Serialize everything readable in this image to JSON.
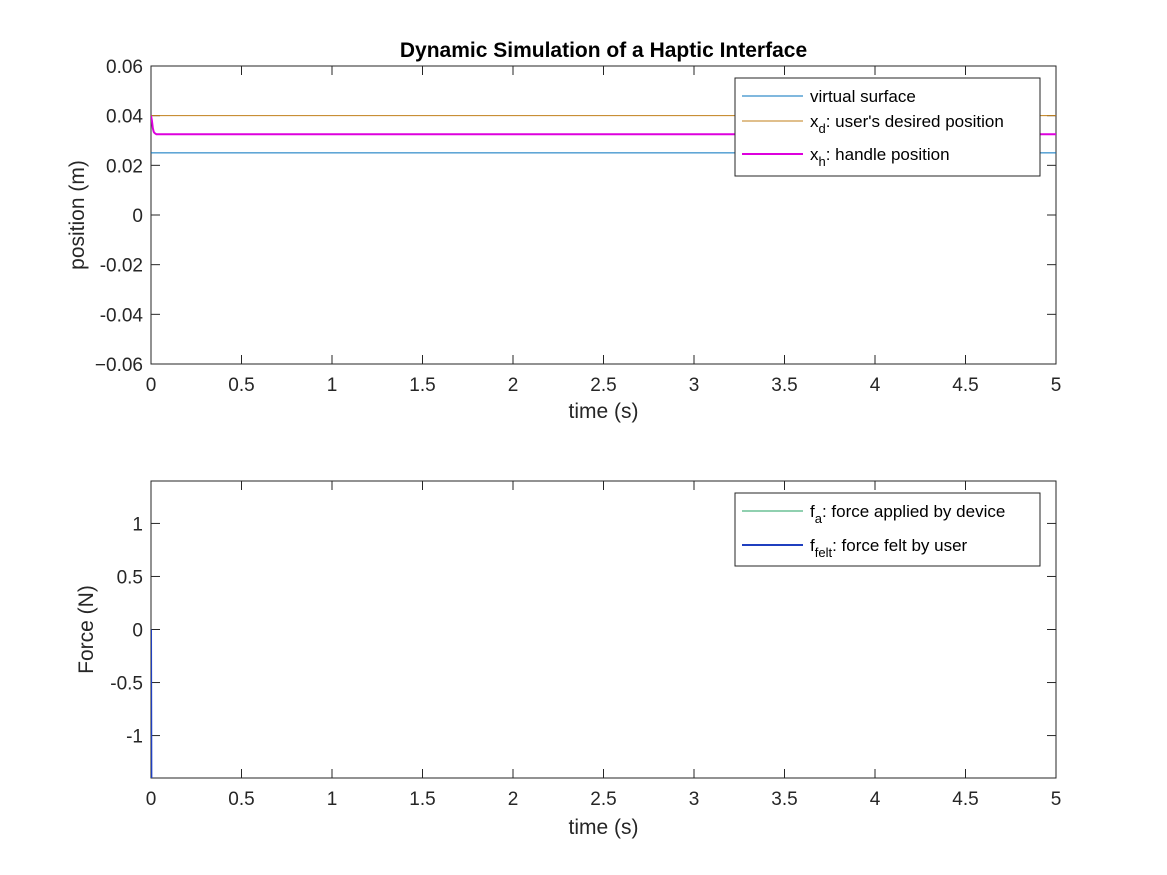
{
  "chart_data": [
    {
      "type": "line",
      "title": "Dynamic Simulation of a Haptic Interface",
      "xlabel": "time (s)",
      "ylabel": "position (m)",
      "xlim": [
        0,
        5
      ],
      "ylim": [
        -0.06,
        0.06
      ],
      "xticks": [
        0,
        0.5,
        1,
        1.5,
        2,
        2.5,
        3,
        3.5,
        4,
        4.5,
        5
      ],
      "xtick_labels": [
        "0",
        "0.5",
        "1",
        "1.5",
        "2",
        "2.5",
        "3",
        "3.5",
        "4",
        "4.5",
        "5"
      ],
      "yticks": [
        -0.06,
        -0.04,
        -0.02,
        0,
        0.02,
        0.04,
        0.06
      ],
      "ytick_labels": [
        "−0.06",
        "-0.04",
        "-0.02",
        "0",
        "0.02",
        "0.04",
        "0.06"
      ],
      "grid": false,
      "legend_position": "top-right",
      "series": [
        {
          "name": "virtual surface",
          "legend_main": "virtual surface",
          "legend_sub": "",
          "legend_rest": "",
          "color": "#0072BD",
          "line_width": 1,
          "x": [
            0,
            5
          ],
          "y": [
            0.025,
            0.025
          ]
        },
        {
          "name": "x_d: user's desired position",
          "legend_main": "x",
          "legend_sub": "d",
          "legend_rest": ": user's desired position",
          "color": "#C17F1A",
          "line_width": 1,
          "x": [
            0,
            5
          ],
          "y": [
            0.04,
            0.04
          ]
        },
        {
          "name": "x_h: handle position",
          "legend_main": "x",
          "legend_sub": "h",
          "legend_rest": ": handle position",
          "color": "#DD00DD",
          "line_width": 2,
          "x": [
            0,
            0.005,
            0.01,
            0.015,
            0.02,
            0.03,
            0.05,
            0.1,
            5
          ],
          "y": [
            0.04,
            0.038,
            0.035,
            0.0335,
            0.033,
            0.0325,
            0.0325,
            0.0325,
            0.0325
          ]
        }
      ]
    },
    {
      "type": "line",
      "title": "",
      "xlabel": "time (s)",
      "ylabel": "Force (N)",
      "xlim": [
        0,
        5
      ],
      "ylim": [
        -1.4,
        1.4
      ],
      "xticks": [
        0,
        0.5,
        1,
        1.5,
        2,
        2.5,
        3,
        3.5,
        4,
        4.5,
        5
      ],
      "xtick_labels": [
        "0",
        "0.5",
        "1",
        "1.5",
        "2",
        "2.5",
        "3",
        "3.5",
        "4",
        "4.5",
        "5"
      ],
      "yticks": [
        -1,
        -0.5,
        0,
        0.5,
        1
      ],
      "ytick_labels": [
        "-1",
        "-0.5",
        "0",
        "0.5",
        "1"
      ],
      "grid": false,
      "legend_position": "top-right",
      "series": [
        {
          "name": "f_a: force applied by device",
          "legend_main": "f",
          "legend_sub": "a",
          "legend_rest": ": force applied by device",
          "color": "#20A060",
          "line_width": 1,
          "x": [
            0,
            0.001,
            0.002
          ],
          "y": [
            0,
            -0.7,
            -1.4
          ]
        },
        {
          "name": "f_felt: force felt by user",
          "legend_main": "f",
          "legend_sub": "felt",
          "legend_rest": ": force felt by user",
          "color": "#1F3FBF",
          "line_width": 2,
          "x": [
            0,
            0.001,
            0.002
          ],
          "y": [
            0,
            -0.7,
            -1.4
          ]
        }
      ]
    }
  ]
}
